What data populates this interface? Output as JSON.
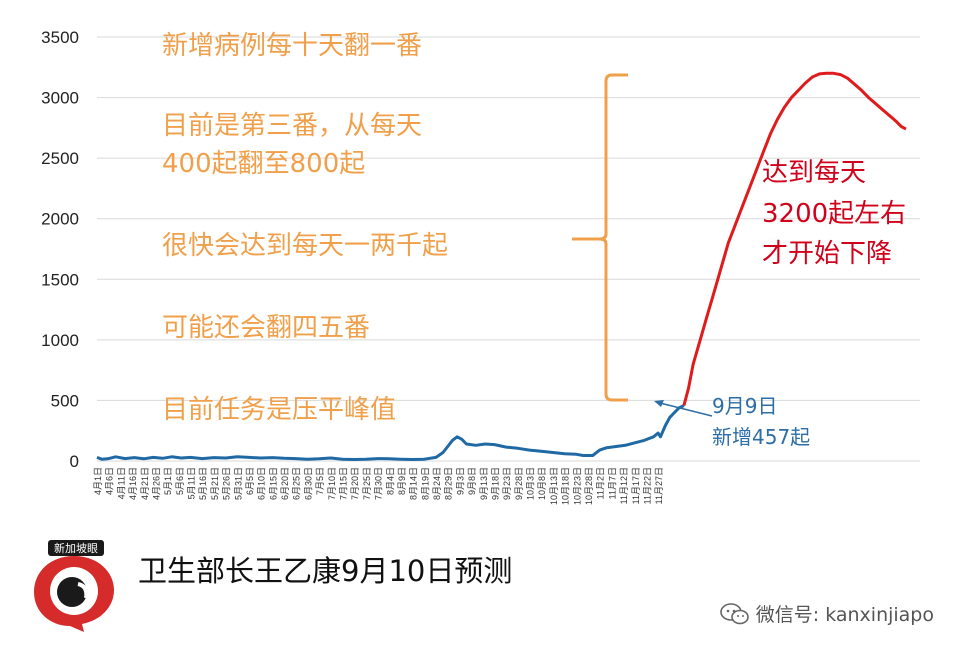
{
  "chart_data": {
    "type": "line",
    "y_ticks": [
      0,
      500,
      1000,
      1500,
      2000,
      2500,
      3000,
      3500
    ],
    "ylim": [
      0,
      3500
    ],
    "x_tick_labels": [
      "4月1日",
      "4月6日",
      "4月11日",
      "4月16日",
      "4月21日",
      "4月26日",
      "5月1日",
      "5月6日",
      "5月11日",
      "5月16日",
      "5月21日",
      "5月26日",
      "5月31日",
      "6月5日",
      "6月10日",
      "6月15日",
      "6月20日",
      "6月25日",
      "6月30日",
      "7月5日",
      "7月10日",
      "7月15日",
      "7月20日",
      "7月25日",
      "7月30日",
      "8月4日",
      "8月9日",
      "8月14日",
      "8月19日",
      "8月24日",
      "8月29日",
      "9月3日",
      "9月8日",
      "9月13日",
      "9月18日",
      "9月23日",
      "9月28日",
      "10月3日",
      "10月8日",
      "10月13日",
      "10月18日",
      "10月23日",
      "10月28日",
      "11月2日",
      "11月7日",
      "11月12日",
      "11月17日",
      "11月22日",
      "11月27日"
    ],
    "series": [
      {
        "color": "#1f6aa5",
        "points": [
          [
            0,
            30
          ],
          [
            2,
            15
          ],
          [
            5,
            20
          ],
          [
            8,
            35
          ],
          [
            12,
            20
          ],
          [
            16,
            28
          ],
          [
            20,
            18
          ],
          [
            24,
            30
          ],
          [
            28,
            22
          ],
          [
            32,
            35
          ],
          [
            36,
            25
          ],
          [
            40,
            30
          ],
          [
            45,
            20
          ],
          [
            50,
            28
          ],
          [
            55,
            25
          ],
          [
            60,
            35
          ],
          [
            65,
            30
          ],
          [
            70,
            25
          ],
          [
            75,
            28
          ],
          [
            80,
            22
          ],
          [
            85,
            20
          ],
          [
            90,
            15
          ],
          [
            95,
            18
          ],
          [
            100,
            25
          ],
          [
            105,
            15
          ],
          [
            110,
            12
          ],
          [
            115,
            15
          ],
          [
            120,
            20
          ],
          [
            125,
            18
          ],
          [
            130,
            15
          ],
          [
            135,
            12
          ],
          [
            140,
            15
          ],
          [
            145,
            30
          ],
          [
            148,
            70
          ],
          [
            150,
            120
          ],
          [
            152,
            170
          ],
          [
            154,
            200
          ],
          [
            156,
            180
          ],
          [
            158,
            140
          ],
          [
            162,
            130
          ],
          [
            166,
            140
          ],
          [
            170,
            135
          ],
          [
            175,
            115
          ],
          [
            180,
            105
          ],
          [
            185,
            90
          ],
          [
            190,
            80
          ],
          [
            195,
            70
          ],
          [
            200,
            60
          ],
          [
            205,
            55
          ],
          [
            208,
            45
          ],
          [
            212,
            45
          ],
          [
            215,
            90
          ],
          [
            218,
            110
          ],
          [
            222,
            120
          ],
          [
            226,
            130
          ],
          [
            230,
            150
          ],
          [
            234,
            170
          ],
          [
            238,
            200
          ],
          [
            240,
            230
          ],
          [
            241,
            200
          ],
          [
            243,
            290
          ],
          [
            245,
            360
          ],
          [
            247,
            400
          ],
          [
            249,
            440
          ],
          [
            251,
            457
          ]
        ]
      },
      {
        "color": "#e01b1b",
        "points": [
          [
            251,
            457
          ],
          [
            253,
            600
          ],
          [
            255,
            800
          ],
          [
            258,
            1000
          ],
          [
            261,
            1200
          ],
          [
            264,
            1400
          ],
          [
            267,
            1600
          ],
          [
            270,
            1800
          ],
          [
            273,
            1950
          ],
          [
            276,
            2100
          ],
          [
            279,
            2250
          ],
          [
            282,
            2400
          ],
          [
            285,
            2550
          ],
          [
            288,
            2700
          ],
          [
            291,
            2820
          ],
          [
            294,
            2920
          ],
          [
            297,
            3000
          ],
          [
            300,
            3060
          ],
          [
            303,
            3120
          ],
          [
            306,
            3170
          ],
          [
            309,
            3195
          ],
          [
            312,
            3200
          ],
          [
            315,
            3200
          ],
          [
            318,
            3190
          ],
          [
            321,
            3160
          ],
          [
            324,
            3110
          ],
          [
            327,
            3060
          ],
          [
            330,
            3000
          ],
          [
            333,
            2950
          ],
          [
            336,
            2900
          ],
          [
            339,
            2850
          ],
          [
            342,
            2800
          ],
          [
            344,
            2760
          ],
          [
            346,
            2740
          ]
        ]
      }
    ]
  },
  "annotations": {
    "line1": "新增病例每十天翻一番",
    "line2a": "目前是第三番，从每天",
    "line2b": "400起翻至800起",
    "line3": "很快会达到每天一两千起",
    "line4": "可能还会翻四五番",
    "line5": "目前任务是压平峰值",
    "red_a": "达到每天",
    "red_b": "3200起左右",
    "red_c": "才开始下降",
    "blue_a": "9月9日",
    "blue_b": "新增457起"
  },
  "caption": "卫生部长王乙康9月10日预测",
  "logo_text": "新加坡眼",
  "watermark": "微信号: kanxinjiapo",
  "colors": {
    "orange": "#f0a04b",
    "red": "#d0021b",
    "blue": "#2c6ea6"
  }
}
